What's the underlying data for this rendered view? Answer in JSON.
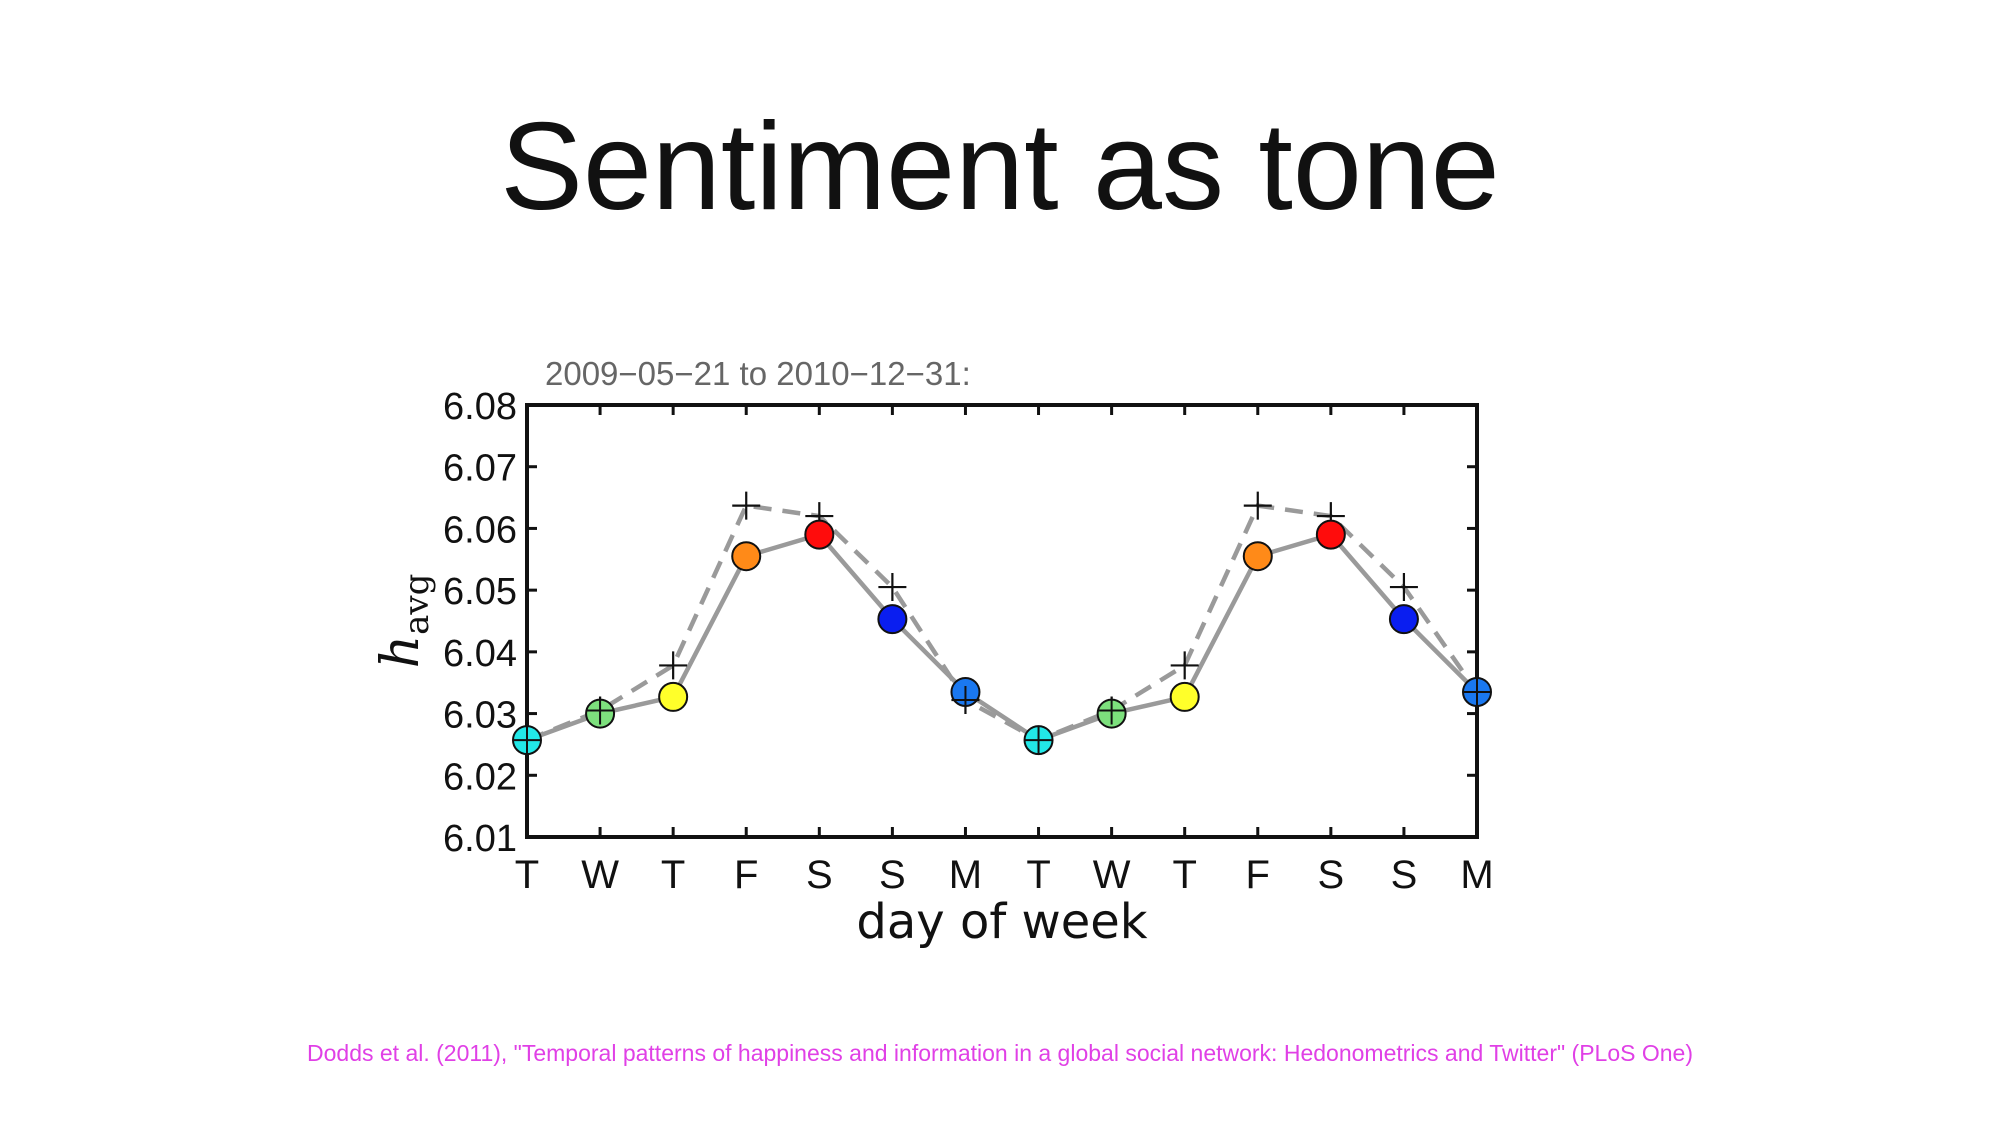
{
  "slide": {
    "title": "Sentiment as tone",
    "citation": "Dodds et al. (2011), \"Temporal patterns of happiness and information in a global social network: Hedonometrics and Twitter\" (PLoS One)"
  },
  "chart_data": {
    "type": "line",
    "title": "2009−05−21 to 2010−12−31:",
    "xlabel": "day of week",
    "ylabel_main": "h",
    "ylabel_sub": "avg",
    "categories": [
      "T",
      "W",
      "T",
      "F",
      "S",
      "S",
      "M",
      "T",
      "W",
      "T",
      "F",
      "S",
      "S",
      "M"
    ],
    "ylim": [
      6.01,
      6.08
    ],
    "yticks": [
      "6.08",
      "6.07",
      "6.06",
      "6.05",
      "6.04",
      "6.03",
      "6.02",
      "6.01"
    ],
    "ytick_values": [
      6.08,
      6.07,
      6.06,
      6.05,
      6.04,
      6.03,
      6.02,
      6.01
    ],
    "grid": false,
    "series": [
      {
        "name": "solid",
        "style": "solid",
        "color": "#9a9a9a",
        "values": [
          6.0257,
          6.03,
          6.0327,
          6.0555,
          6.059,
          6.0453,
          6.0335,
          6.0257,
          6.03,
          6.0327,
          6.0555,
          6.059,
          6.0453,
          6.0335
        ]
      },
      {
        "name": "dashed",
        "style": "dashed",
        "color": "#9a9a9a",
        "values": [
          6.0257,
          6.0305,
          6.0378,
          6.0637,
          6.062,
          6.0505,
          6.0322,
          6.0257,
          6.0305,
          6.0378,
          6.0637,
          6.062,
          6.0505,
          6.0335
        ]
      }
    ],
    "marker_colors": [
      "#22e8e8",
      "#7de07d",
      "#ffff2a",
      "#ff8a18",
      "#ff0c0c",
      "#0a1ef0",
      "#1a78f0",
      "#22e8e8",
      "#7de07d",
      "#ffff2a",
      "#ff8a18",
      "#ff0c0c",
      "#0a1ef0",
      "#1a78f0"
    ],
    "colors": {
      "axis": "#111111",
      "title": "#666666",
      "line": "#9a9a9a",
      "plus": "#111111"
    }
  }
}
